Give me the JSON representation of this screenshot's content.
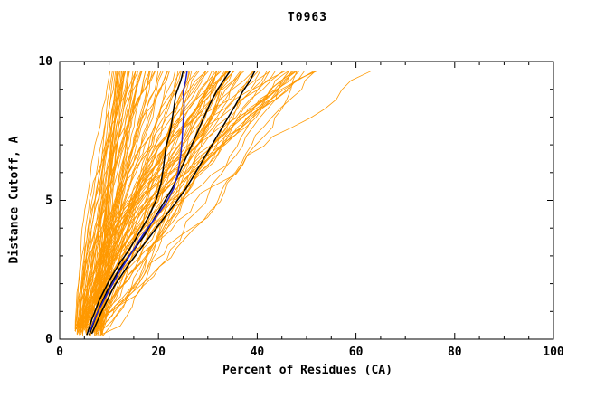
{
  "chart_data": {
    "type": "line",
    "title": "T0963",
    "xlabel": "Percent of Residues (CA)",
    "ylabel": "Distance Cutoff, A",
    "xlim": [
      0,
      100
    ],
    "ylim": [
      0,
      10
    ],
    "x_major_ticks": [
      0,
      20,
      40,
      60,
      80,
      100
    ],
    "x_minor_step": 5,
    "y_major_ticks": [
      0,
      5,
      10
    ],
    "y_minor_step": 1,
    "grid": false,
    "legend": "none",
    "axis_color": "#000000",
    "series_groups": {
      "ensemble": {
        "name": "server-model-curves",
        "color": "#FF9900",
        "count": 110,
        "seed": 20963,
        "y_start_range": [
          0.1,
          0.5
        ],
        "y_end": 9.65,
        "x_start_range": [
          3,
          9
        ],
        "x_end_min": 10,
        "x_end_max": 52,
        "exponent_range": [
          0.7,
          1.9
        ],
        "outlier_x_ends": [
          63,
          52,
          48
        ]
      },
      "highlight": {
        "name": "selected-model-curves",
        "color": "#000000",
        "stroke_width": 1.5,
        "series": [
          {
            "name": "black-model-1",
            "points": [
              [
                5.5,
                0.15
              ],
              [
                6.5,
                0.7
              ],
              [
                8,
                1.4
              ],
              [
                10,
                2.1
              ],
              [
                12,
                2.7
              ],
              [
                14,
                3.2
              ],
              [
                16,
                3.8
              ],
              [
                18,
                4.4
              ],
              [
                19.5,
                5.0
              ],
              [
                20.5,
                5.6
              ],
              [
                21,
                6.2
              ],
              [
                21.5,
                6.9
              ],
              [
                22.5,
                7.6
              ],
              [
                23,
                8.2
              ],
              [
                23.5,
                8.8
              ],
              [
                24.5,
                9.3
              ],
              [
                25,
                9.65
              ]
            ]
          },
          {
            "name": "black-model-2",
            "points": [
              [
                6,
                0.15
              ],
              [
                7.5,
                0.9
              ],
              [
                9.5,
                1.7
              ],
              [
                12,
                2.5
              ],
              [
                14.5,
                3.1
              ],
              [
                17,
                3.7
              ],
              [
                19,
                4.3
              ],
              [
                21,
                4.9
              ],
              [
                23,
                5.5
              ],
              [
                24.5,
                6.1
              ],
              [
                26,
                6.7
              ],
              [
                27.5,
                7.3
              ],
              [
                29,
                7.9
              ],
              [
                30.5,
                8.5
              ],
              [
                32,
                9.0
              ],
              [
                33.5,
                9.4
              ],
              [
                34.5,
                9.65
              ]
            ]
          },
          {
            "name": "black-model-3",
            "points": [
              [
                6.5,
                0.2
              ],
              [
                8.5,
                1.0
              ],
              [
                11,
                1.9
              ],
              [
                14,
                2.7
              ],
              [
                17,
                3.4
              ],
              [
                20,
                4.1
              ],
              [
                23,
                4.8
              ],
              [
                25.5,
                5.4
              ],
              [
                27.5,
                6.0
              ],
              [
                29.5,
                6.6
              ],
              [
                31.5,
                7.2
              ],
              [
                33.5,
                7.8
              ],
              [
                35.5,
                8.4
              ],
              [
                37,
                8.9
              ],
              [
                38.5,
                9.3
              ],
              [
                39.5,
                9.65
              ]
            ]
          }
        ]
      },
      "special": {
        "name": "reference-model-curve",
        "color": "#2222CC",
        "stroke_width": 1.5,
        "points": [
          [
            6,
            0.25
          ],
          [
            7.5,
            0.9
          ],
          [
            9.5,
            1.6
          ],
          [
            12,
            2.4
          ],
          [
            14.5,
            3.1
          ],
          [
            17,
            3.8
          ],
          [
            19.5,
            4.4
          ],
          [
            21.5,
            4.9
          ],
          [
            23,
            5.4
          ],
          [
            24,
            6.0
          ],
          [
            24.5,
            6.6
          ],
          [
            24.8,
            7.2
          ],
          [
            25,
            7.8
          ],
          [
            25.2,
            8.4
          ],
          [
            25,
            8.9
          ],
          [
            25.5,
            9.3
          ],
          [
            25.8,
            9.65
          ]
        ]
      }
    }
  }
}
